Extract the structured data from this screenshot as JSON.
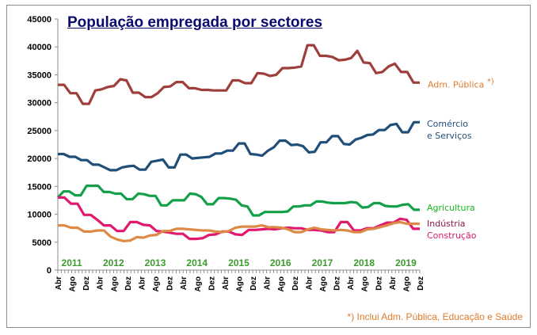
{
  "chart_data": {
    "type": "line",
    "title": "População empregada por sectores",
    "xlabel": "",
    "ylabel": "",
    "ylim": [
      0,
      45000
    ],
    "yticks": [
      0,
      5000,
      10000,
      15000,
      20000,
      25000,
      30000,
      35000,
      40000,
      45000
    ],
    "grid": false,
    "x_start": "Abr 2011",
    "x_end": "Dez 2019",
    "x_step_months": 2,
    "month_tick_labels": [
      "Abr",
      "Ago",
      "Dez"
    ],
    "year_labels": [
      "2011",
      "2012",
      "2013",
      "2014",
      "2015",
      "2016",
      "2017",
      "2018",
      "2019"
    ],
    "series": [
      {
        "name": "Adm. Pública *)",
        "color": "#9e3f3b",
        "values": [
          33200,
          33200,
          31700,
          31700,
          29800,
          29800,
          32200,
          32400,
          32800,
          33000,
          34200,
          34000,
          31800,
          31800,
          31000,
          31000,
          31700,
          32800,
          32900,
          33700,
          33700,
          32600,
          32600,
          32300,
          32300,
          32200,
          32200,
          32200,
          34000,
          34000,
          33500,
          33500,
          35300,
          35200,
          34800,
          35000,
          36200,
          36200,
          36300,
          36500,
          40300,
          40300,
          38400,
          38400,
          38200,
          37600,
          37700,
          38000,
          39300,
          37200,
          37100,
          35300,
          35500,
          36500,
          37000,
          35500,
          35500,
          33600,
          33600
        ]
      },
      {
        "name": "Comércio e Serviços",
        "color": "#1f4e79",
        "values": [
          20800,
          20800,
          20300,
          20300,
          19700,
          19700,
          18900,
          18900,
          18400,
          17900,
          17900,
          18400,
          18600,
          18700,
          18000,
          18000,
          19400,
          19600,
          19800,
          18400,
          18400,
          20700,
          20700,
          20000,
          20100,
          20200,
          20300,
          20900,
          20900,
          21400,
          21400,
          22700,
          22700,
          20800,
          20700,
          20500,
          21400,
          22000,
          23200,
          23200,
          22400,
          22500,
          22200,
          21100,
          21200,
          22900,
          22900,
          24000,
          24000,
          22600,
          22500,
          23400,
          23700,
          24200,
          24300,
          25100,
          25100,
          26000,
          26200,
          24700,
          24700,
          26500,
          26500
        ]
      },
      {
        "name": "Agricultura",
        "color": "#14a048",
        "values": [
          13000,
          14100,
          14100,
          13400,
          13400,
          15100,
          15100,
          15100,
          14000,
          14000,
          13700,
          13700,
          12700,
          12700,
          13700,
          13600,
          13300,
          13300,
          11600,
          11600,
          12500,
          12500,
          12500,
          13700,
          13600,
          13100,
          11800,
          11800,
          12900,
          12900,
          12800,
          12600,
          11600,
          11400,
          9800,
          9800,
          10400,
          10400,
          10400,
          10400,
          10500,
          11400,
          11400,
          11600,
          11600,
          12300,
          12300,
          12100,
          12000,
          12000,
          12000,
          12200,
          12100,
          11200,
          11300,
          12000,
          12000,
          11500,
          11400,
          11400,
          11700,
          11800,
          10800,
          10800
        ]
      },
      {
        "name": "Indústria Construção",
        "color": "#e0186e",
        "values": [
          13000,
          13000,
          11900,
          11900,
          9900,
          9900,
          9000,
          8000,
          8000,
          7000,
          7000,
          8600,
          8600,
          8100,
          8000,
          7000,
          6900,
          6700,
          6500,
          6500,
          5600,
          5600,
          5700,
          6300,
          6400,
          6900,
          6900,
          6400,
          6300,
          7200,
          7200,
          7300,
          7400,
          7300,
          7500,
          7600,
          7500,
          7500,
          7200,
          7200,
          7100,
          6800,
          6800,
          8600,
          8600,
          7100,
          7100,
          7500,
          7500,
          8000,
          8500,
          8500,
          9200,
          9000,
          7400,
          7400
        ]
      },
      {
        "name": "Adm. Pública (laranja)",
        "color": "#dd8a47",
        "values": [
          8000,
          8000,
          7600,
          7600,
          6900,
          6900,
          7100,
          7100,
          6000,
          5500,
          5200,
          5300,
          5900,
          5800,
          6200,
          6300,
          7000,
          7000,
          7400,
          7400,
          7300,
          7200,
          7100,
          7100,
          6900,
          6800,
          7000,
          7600,
          7800,
          7800,
          7800,
          8000,
          7700,
          7700,
          7600,
          7300,
          6800,
          6800,
          7300,
          7600,
          7300,
          7200,
          7100,
          7200,
          7100,
          6800,
          6800,
          7300,
          7400,
          7700,
          8000,
          8400,
          8600,
          8300,
          8300,
          8300
        ]
      }
    ],
    "labels": {
      "adm": "Adm. Pública",
      "adm_mark": "*)",
      "comercio": [
        "Comércio",
        "e Serviços"
      ],
      "agricultura": "Agricultura",
      "industria": [
        "Indústria",
        "Construção"
      ]
    },
    "footnote": "*) Inclui Adm. Pública, Educação e Saúde"
  }
}
